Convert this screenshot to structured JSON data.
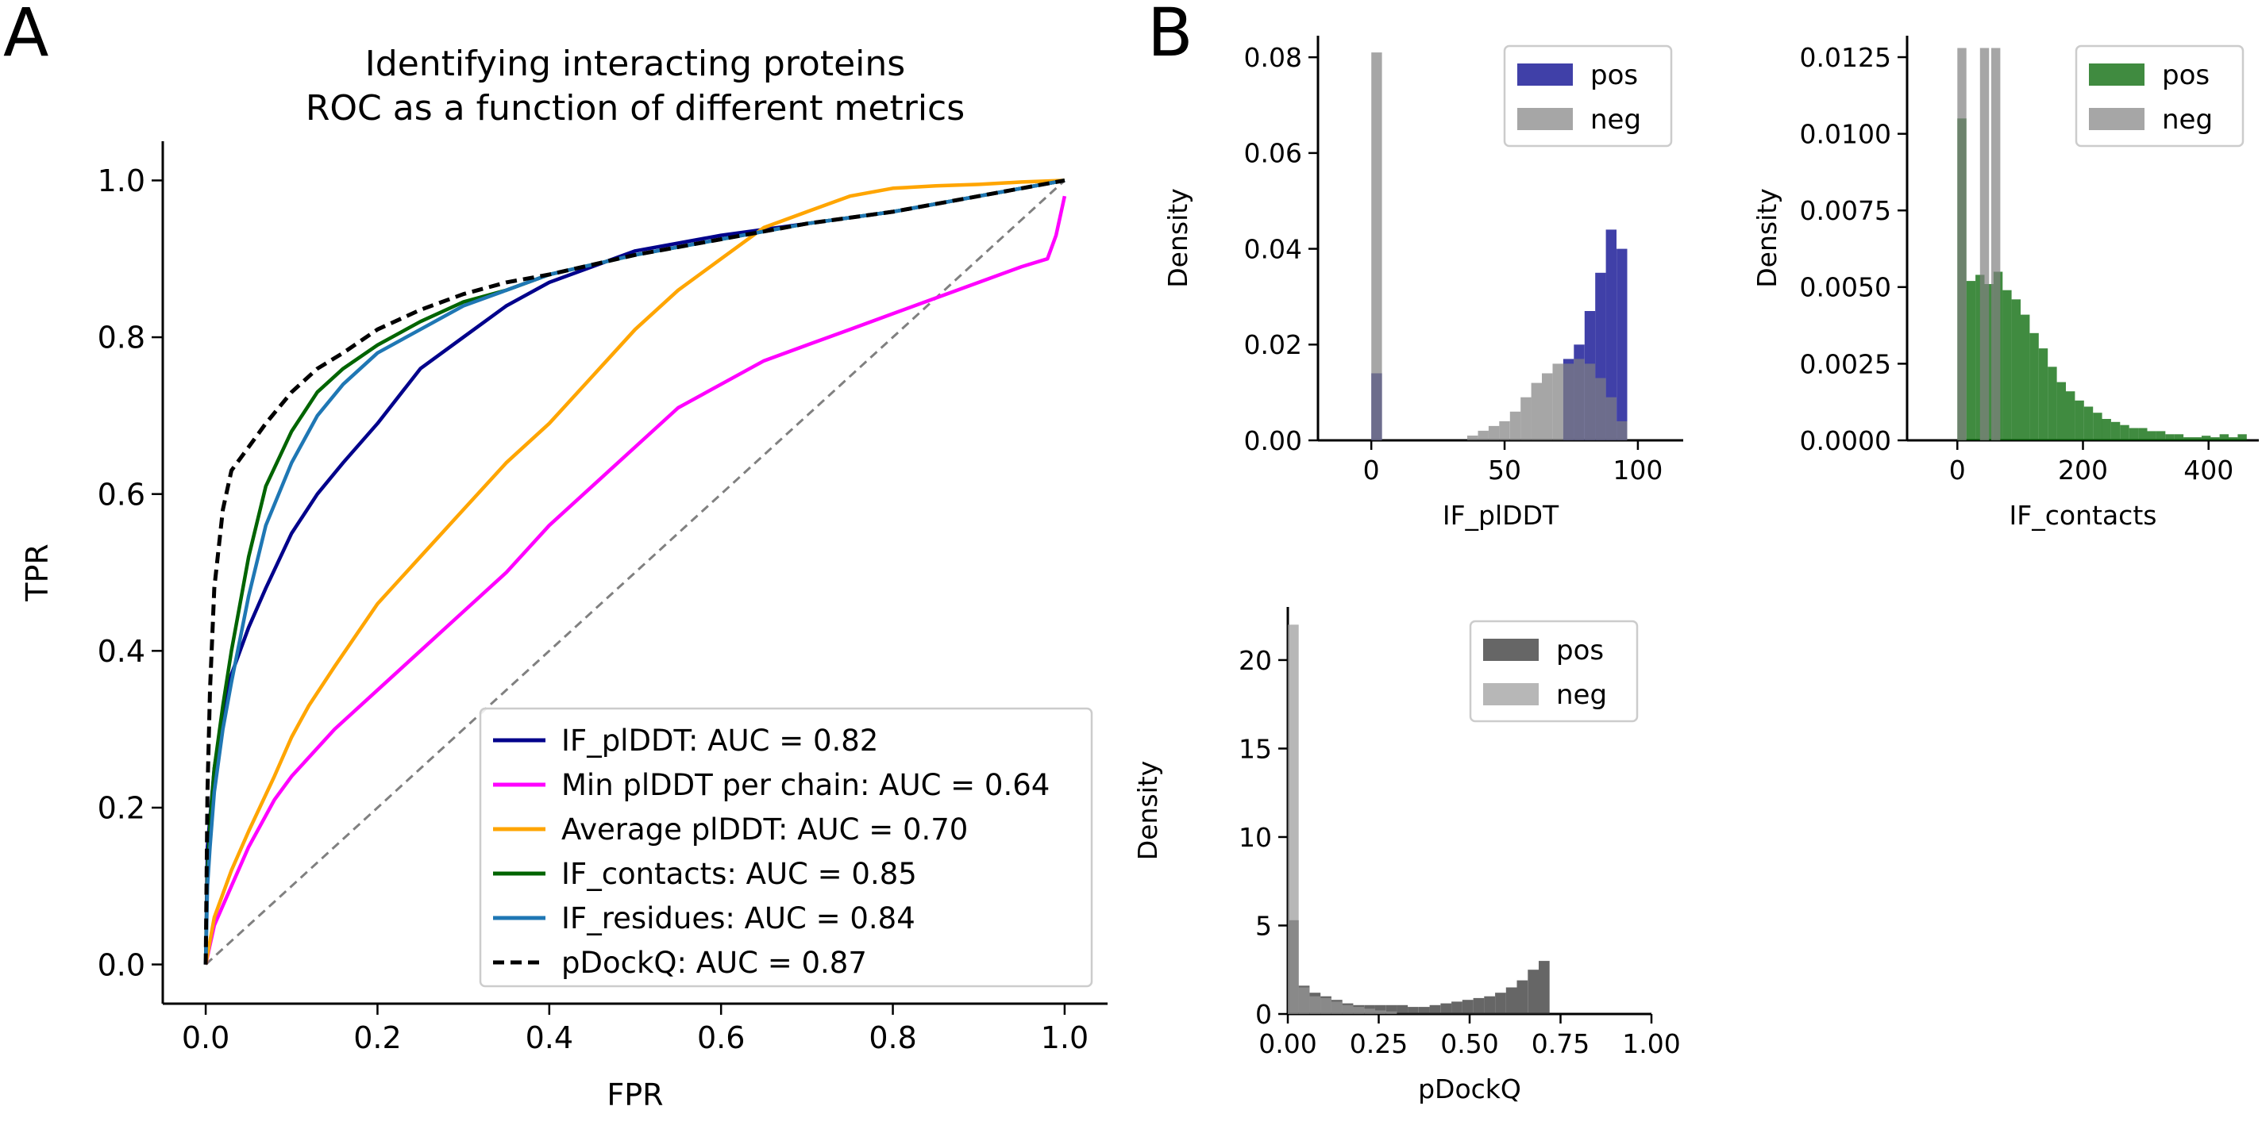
{
  "panel_labels": {
    "a": "A",
    "b": "B"
  },
  "chart_data": [
    {
      "type": "line",
      "title_lines": [
        "Identifying interacting proteins",
        "ROC as a function of different metrics"
      ],
      "xlabel": "FPR",
      "ylabel": "TPR",
      "xlim": [
        -0.05,
        1.05
      ],
      "ylim": [
        -0.05,
        1.05
      ],
      "xticks": [
        0.0,
        0.2,
        0.4,
        0.6,
        0.8,
        1.0
      ],
      "xtick_labels": [
        "0.0",
        "0.2",
        "0.4",
        "0.6",
        "0.8",
        "1.0"
      ],
      "yticks": [
        0.0,
        0.2,
        0.4,
        0.6,
        0.8,
        1.0
      ],
      "ytick_labels": [
        "0.0",
        "0.2",
        "0.4",
        "0.6",
        "0.8",
        "1.0"
      ],
      "grid": false,
      "legend_position": "lower-right",
      "diagonal": {
        "color": "#808080",
        "style": "dashed"
      },
      "series": [
        {
          "name": "IF_plDDT: AUC = 0.82",
          "color": "#00008b",
          "style": "solid",
          "x": [
            0,
            0.002,
            0.01,
            0.02,
            0.03,
            0.05,
            0.07,
            0.1,
            0.13,
            0.16,
            0.2,
            0.25,
            0.3,
            0.35,
            0.4,
            0.45,
            0.5,
            0.55,
            0.6,
            0.7,
            0.8,
            0.9,
            1.0
          ],
          "y": [
            0,
            0.15,
            0.25,
            0.32,
            0.37,
            0.43,
            0.48,
            0.55,
            0.6,
            0.64,
            0.69,
            0.76,
            0.8,
            0.84,
            0.87,
            0.89,
            0.91,
            0.92,
            0.93,
            0.945,
            0.96,
            0.98,
            1.0
          ]
        },
        {
          "name": "Min plDDT per chain: AUC = 0.64",
          "color": "#ff00ff",
          "style": "solid",
          "x": [
            0,
            0.01,
            0.03,
            0.05,
            0.08,
            0.1,
            0.15,
            0.2,
            0.25,
            0.3,
            0.35,
            0.4,
            0.45,
            0.5,
            0.55,
            0.6,
            0.65,
            0.7,
            0.75,
            0.8,
            0.85,
            0.9,
            0.95,
            0.98,
            0.99,
            1.0
          ],
          "y": [
            0,
            0.05,
            0.1,
            0.15,
            0.21,
            0.24,
            0.3,
            0.35,
            0.4,
            0.45,
            0.5,
            0.56,
            0.61,
            0.66,
            0.71,
            0.74,
            0.77,
            0.79,
            0.81,
            0.83,
            0.85,
            0.87,
            0.89,
            0.9,
            0.93,
            0.98
          ]
        },
        {
          "name": "Average plDDT: AUC = 0.70",
          "color": "#ffa500",
          "style": "solid",
          "x": [
            0,
            0.01,
            0.03,
            0.05,
            0.08,
            0.1,
            0.12,
            0.15,
            0.2,
            0.25,
            0.3,
            0.35,
            0.4,
            0.45,
            0.5,
            0.55,
            0.6,
            0.65,
            0.7,
            0.75,
            0.8,
            0.85,
            0.9,
            0.95,
            1.0
          ],
          "y": [
            0,
            0.06,
            0.12,
            0.17,
            0.24,
            0.29,
            0.33,
            0.38,
            0.46,
            0.52,
            0.58,
            0.64,
            0.69,
            0.75,
            0.81,
            0.86,
            0.9,
            0.94,
            0.96,
            0.98,
            0.99,
            0.993,
            0.995,
            0.998,
            1.0
          ]
        },
        {
          "name": "IF_contacts: AUC = 0.85",
          "color": "#006400",
          "style": "solid",
          "x": [
            0,
            0.002,
            0.005,
            0.01,
            0.02,
            0.03,
            0.05,
            0.07,
            0.1,
            0.13,
            0.16,
            0.2,
            0.25,
            0.3,
            0.35,
            0.4,
            0.5,
            0.6,
            0.7,
            0.8,
            0.9,
            1.0
          ],
          "y": [
            0,
            0.12,
            0.18,
            0.25,
            0.33,
            0.4,
            0.52,
            0.61,
            0.68,
            0.73,
            0.76,
            0.79,
            0.82,
            0.845,
            0.86,
            0.88,
            0.905,
            0.925,
            0.945,
            0.96,
            0.98,
            1.0
          ]
        },
        {
          "name": "IF_residues: AUC = 0.84",
          "color": "#1f77b4",
          "style": "solid",
          "x": [
            0,
            0.002,
            0.005,
            0.01,
            0.02,
            0.03,
            0.05,
            0.07,
            0.1,
            0.13,
            0.16,
            0.2,
            0.25,
            0.3,
            0.35,
            0.4,
            0.5,
            0.6,
            0.7,
            0.8,
            0.9,
            1.0
          ],
          "y": [
            0,
            0.1,
            0.15,
            0.22,
            0.3,
            0.36,
            0.47,
            0.56,
            0.64,
            0.7,
            0.74,
            0.78,
            0.81,
            0.84,
            0.86,
            0.88,
            0.905,
            0.925,
            0.945,
            0.96,
            0.98,
            1.0
          ]
        },
        {
          "name": "pDockQ: AUC = 0.87",
          "color": "#000000",
          "style": "dashed",
          "x": [
            0,
            0.002,
            0.005,
            0.01,
            0.02,
            0.03,
            0.05,
            0.07,
            0.1,
            0.13,
            0.16,
            0.2,
            0.25,
            0.3,
            0.35,
            0.4,
            0.5,
            0.6,
            0.7,
            0.8,
            0.9,
            1.0
          ],
          "y": [
            0,
            0.22,
            0.35,
            0.48,
            0.58,
            0.63,
            0.66,
            0.69,
            0.73,
            0.76,
            0.78,
            0.81,
            0.835,
            0.855,
            0.87,
            0.88,
            0.905,
            0.925,
            0.945,
            0.96,
            0.98,
            1.0
          ]
        }
      ]
    },
    {
      "type": "bar",
      "xlabel": "IF_plDDT",
      "ylabel": "Density",
      "xlim": [
        -20,
        117
      ],
      "ylim": [
        0,
        0.0845
      ],
      "xticks": [
        0,
        50,
        100
      ],
      "xtick_labels": [
        "0",
        "50",
        "100"
      ],
      "yticks": [
        0.0,
        0.02,
        0.04,
        0.06,
        0.08
      ],
      "ytick_labels": [
        "0.00",
        "0.02",
        "0.04",
        "0.06",
        "0.08"
      ],
      "legend_position": "top-right",
      "bin_width": 4,
      "series": [
        {
          "name": "pos",
          "color": "#00008b",
          "bin_starts": [
            0,
            72,
            76,
            80,
            84,
            88,
            92
          ],
          "values": [
            0.014,
            0.017,
            0.02,
            0.027,
            0.035,
            0.044,
            0.04
          ]
        },
        {
          "name": "neg",
          "color": "#808080",
          "bin_starts": [
            0,
            36,
            40,
            44,
            48,
            52,
            56,
            60,
            64,
            68,
            72,
            76,
            80,
            84,
            88,
            92
          ],
          "values": [
            0.081,
            0.001,
            0.002,
            0.003,
            0.004,
            0.006,
            0.009,
            0.012,
            0.014,
            0.016,
            0.016,
            0.017,
            0.016,
            0.013,
            0.009,
            0.004
          ]
        }
      ]
    },
    {
      "type": "bar",
      "xlabel": "IF_contacts",
      "ylabel": "Density",
      "xlim": [
        -80,
        480
      ],
      "ylim": [
        0,
        0.0132
      ],
      "xticks": [
        0,
        200,
        400
      ],
      "xtick_labels": [
        "0",
        "200",
        "400"
      ],
      "yticks": [
        0.0,
        0.0025,
        0.005,
        0.0075,
        0.01,
        0.0125
      ],
      "ytick_labels": [
        "0.0000",
        "0.0025",
        "0.0050",
        "0.0075",
        "0.0100",
        "0.0125"
      ],
      "legend_position": "top-right",
      "bin_width": 14.4,
      "series": [
        {
          "name": "pos",
          "color": "#006400",
          "bin_starts": [
            0,
            14.4,
            28.8,
            43.2,
            57.6,
            72,
            86.4,
            100.8,
            115.2,
            129.6,
            144,
            158.4,
            172.8,
            187.2,
            201.6,
            216,
            230.4,
            244.8,
            259.2,
            273.6,
            288,
            302.4,
            316.8,
            331.2,
            345.6,
            360,
            374.4,
            388.8,
            403.2,
            417.6,
            432,
            446.4
          ],
          "values": [
            0.0105,
            0.0052,
            0.0054,
            0.0051,
            0.0055,
            0.0049,
            0.0046,
            0.0041,
            0.0035,
            0.003,
            0.0024,
            0.0019,
            0.0016,
            0.0013,
            0.0011,
            0.0009,
            0.0007,
            0.0006,
            0.0005,
            0.0004,
            0.0004,
            0.0003,
            0.0003,
            0.0002,
            0.0002,
            0.0001,
            0.0001,
            0.00015,
            0.0001,
            0.0002,
            0.0001,
            0.0002
          ]
        },
        {
          "name": "neg",
          "color": "#808080",
          "bin_starts": [
            0,
            36,
            54
          ],
          "values": [
            0.0128,
            0.0128,
            0.0128
          ]
        }
      ]
    },
    {
      "type": "bar",
      "xlabel": "pDockQ",
      "ylabel": "Density",
      "xlim": [
        0,
        1.0
      ],
      "ylim": [
        0,
        23
      ],
      "xticks": [
        0.0,
        0.25,
        0.5,
        0.75,
        1.0
      ],
      "xtick_labels": [
        "0.00",
        "0.25",
        "0.50",
        "0.75",
        "1.00"
      ],
      "yticks": [
        0,
        5,
        10,
        15,
        20
      ],
      "ytick_labels": [
        "0",
        "5",
        "10",
        "15",
        "20"
      ],
      "legend_position": "top-right",
      "bin_width": 0.03,
      "series": [
        {
          "name": "pos",
          "color": "#333333",
          "bin_starts": [
            0,
            0.03,
            0.06,
            0.09,
            0.12,
            0.15,
            0.18,
            0.21,
            0.24,
            0.27,
            0.3,
            0.33,
            0.36,
            0.39,
            0.42,
            0.45,
            0.48,
            0.51,
            0.54,
            0.57,
            0.6,
            0.63,
            0.66,
            0.69
          ],
          "values": [
            5.3,
            1.6,
            1.2,
            1.0,
            0.8,
            0.6,
            0.5,
            0.5,
            0.5,
            0.5,
            0.5,
            0.4,
            0.4,
            0.5,
            0.6,
            0.7,
            0.8,
            0.9,
            1.0,
            1.2,
            1.5,
            1.9,
            2.5,
            3.0
          ]
        },
        {
          "name": "neg",
          "color": "#999999",
          "bin_starts": [
            0,
            0.03,
            0.06,
            0.09,
            0.12,
            0.15,
            0.18,
            0.21,
            0.24,
            0.27
          ],
          "values": [
            22.0,
            1.5,
            1.0,
            0.9,
            0.7,
            0.5,
            0.4,
            0.3,
            0.2,
            0.15
          ]
        }
      ]
    }
  ]
}
